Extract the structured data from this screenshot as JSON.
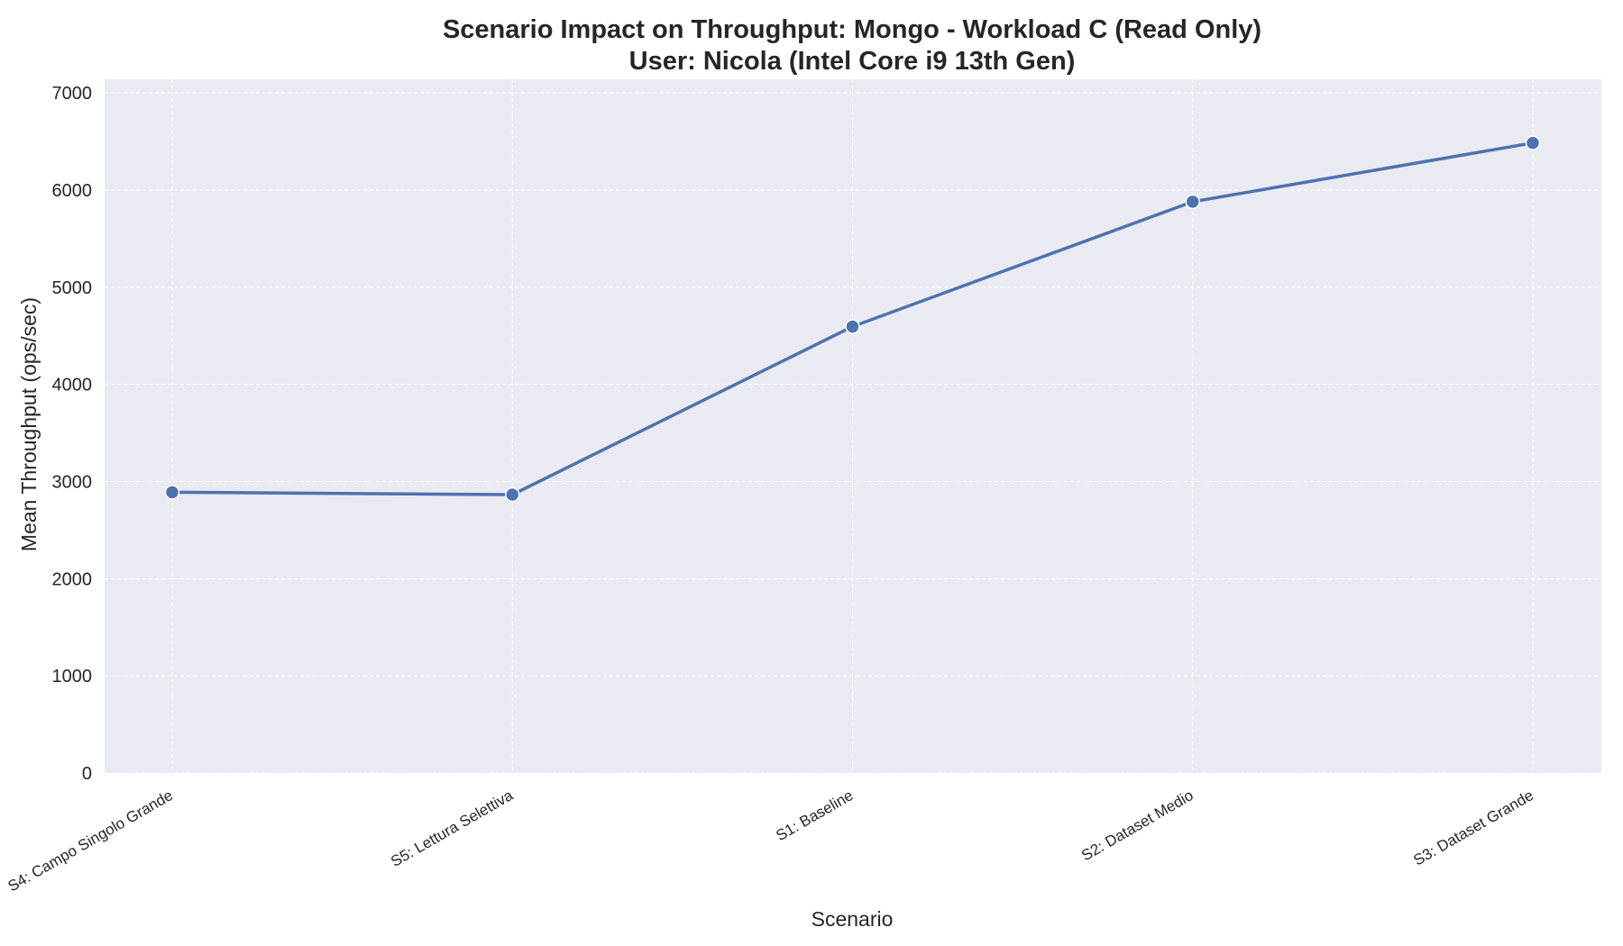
{
  "chart_data": {
    "type": "line",
    "title": "Scenario Impact on Throughput: Mongo - Workload C (Read Only)",
    "subtitle": "User: Nicola (Intel Core i9 13th Gen)",
    "xlabel": "Scenario",
    "ylabel": "Mean Throughput (ops/sec)",
    "categories": [
      "S4: Campo Singolo Grande",
      "S5: Lettura Selettiva",
      "S1: Baseline",
      "S2: Dataset Medio",
      "S3: Dataset Grande"
    ],
    "series": [
      {
        "values": [
          2890,
          2865,
          4595,
          5880,
          6485
        ]
      }
    ],
    "ylim": [
      0,
      7140
    ],
    "yticks": [
      0,
      1000,
      2000,
      3000,
      4000,
      5000,
      6000,
      7000
    ],
    "grid": true,
    "colors": {
      "line": "#4c72b0",
      "plot_bg": "#eaeaf2",
      "grid": "#ffffff"
    }
  }
}
